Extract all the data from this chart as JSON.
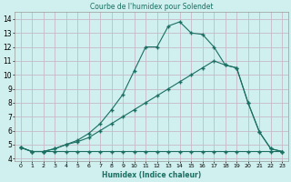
{
  "title": "Courbe de l'humidex pour Solendet",
  "xlabel": "Humidex (Indice chaleur)",
  "background_color": "#cff0ee",
  "grid_color": "#c8b8c8",
  "line_color": "#1a6e62",
  "xlim": [
    -0.5,
    23.5
  ],
  "ylim": [
    3.8,
    14.5
  ],
  "xticks": [
    0,
    1,
    2,
    3,
    4,
    5,
    6,
    7,
    8,
    9,
    10,
    11,
    12,
    13,
    14,
    15,
    16,
    17,
    18,
    19,
    20,
    21,
    22,
    23
  ],
  "yticks": [
    4,
    5,
    6,
    7,
    8,
    9,
    10,
    11,
    12,
    13,
    14
  ],
  "line1_x": [
    0,
    1,
    2,
    3,
    4,
    5,
    6,
    7,
    8,
    9,
    10,
    11,
    12,
    13,
    14,
    15,
    16,
    17,
    18,
    19,
    20,
    21,
    22,
    23
  ],
  "line1_y": [
    4.8,
    4.5,
    4.5,
    4.7,
    5.0,
    5.3,
    5.8,
    6.5,
    7.5,
    8.6,
    10.3,
    12.0,
    12.0,
    13.5,
    13.8,
    13.0,
    12.9,
    12.0,
    10.7,
    10.5,
    8.0,
    5.9,
    4.7,
    4.5
  ],
  "line2_x": [
    0,
    1,
    2,
    3,
    4,
    5,
    6,
    7,
    8,
    9,
    10,
    11,
    12,
    13,
    14,
    15,
    16,
    17,
    18,
    19,
    20,
    21,
    22,
    23
  ],
  "line2_y": [
    4.8,
    4.5,
    4.5,
    4.7,
    5.0,
    5.2,
    5.5,
    6.0,
    6.5,
    7.0,
    7.5,
    8.0,
    8.5,
    9.0,
    9.5,
    10.0,
    10.5,
    11.0,
    10.7,
    10.5,
    8.0,
    5.9,
    4.7,
    4.5
  ],
  "line3_x": [
    0,
    1,
    2,
    3,
    4,
    5,
    6,
    7,
    8,
    9,
    10,
    11,
    12,
    13,
    14,
    15,
    16,
    17,
    18,
    19,
    20,
    21,
    22,
    23
  ],
  "line3_y": [
    4.8,
    4.5,
    4.5,
    4.5,
    4.5,
    4.5,
    4.5,
    4.5,
    4.5,
    4.5,
    4.5,
    4.5,
    4.5,
    4.5,
    4.5,
    4.5,
    4.5,
    4.5,
    4.5,
    4.5,
    4.5,
    4.5,
    4.5,
    4.5
  ]
}
